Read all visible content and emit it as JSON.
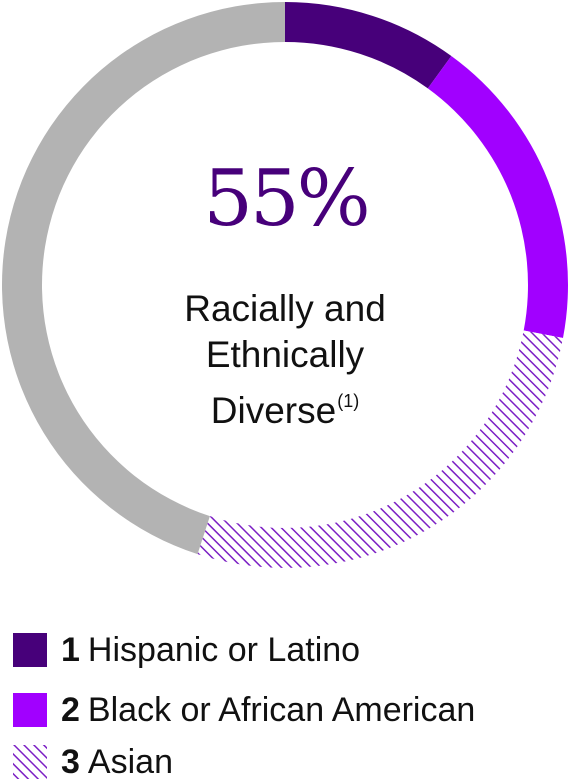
{
  "chart_data": {
    "type": "pie",
    "center_value": "55%",
    "center_label_lines": [
      "Racially and",
      "Ethnically",
      "Diverse"
    ],
    "center_label_note": "(1)",
    "slices": [
      {
        "number": "1",
        "label": "Hispanic or Latino",
        "value": 10,
        "color": "#47007a",
        "pattern": "solid"
      },
      {
        "number": "2",
        "label": "Black or African American",
        "value": 18,
        "color": "#a100ff",
        "pattern": "solid"
      },
      {
        "number": "3",
        "label": "Asian",
        "value": 27,
        "color": "#7b1fc4",
        "pattern": "hatched"
      },
      {
        "number": "",
        "label": "",
        "value": 45,
        "color": "#b3b3b3",
        "pattern": "solid"
      }
    ]
  },
  "colors": {
    "center_value": "#47007a",
    "text": "#111111"
  }
}
